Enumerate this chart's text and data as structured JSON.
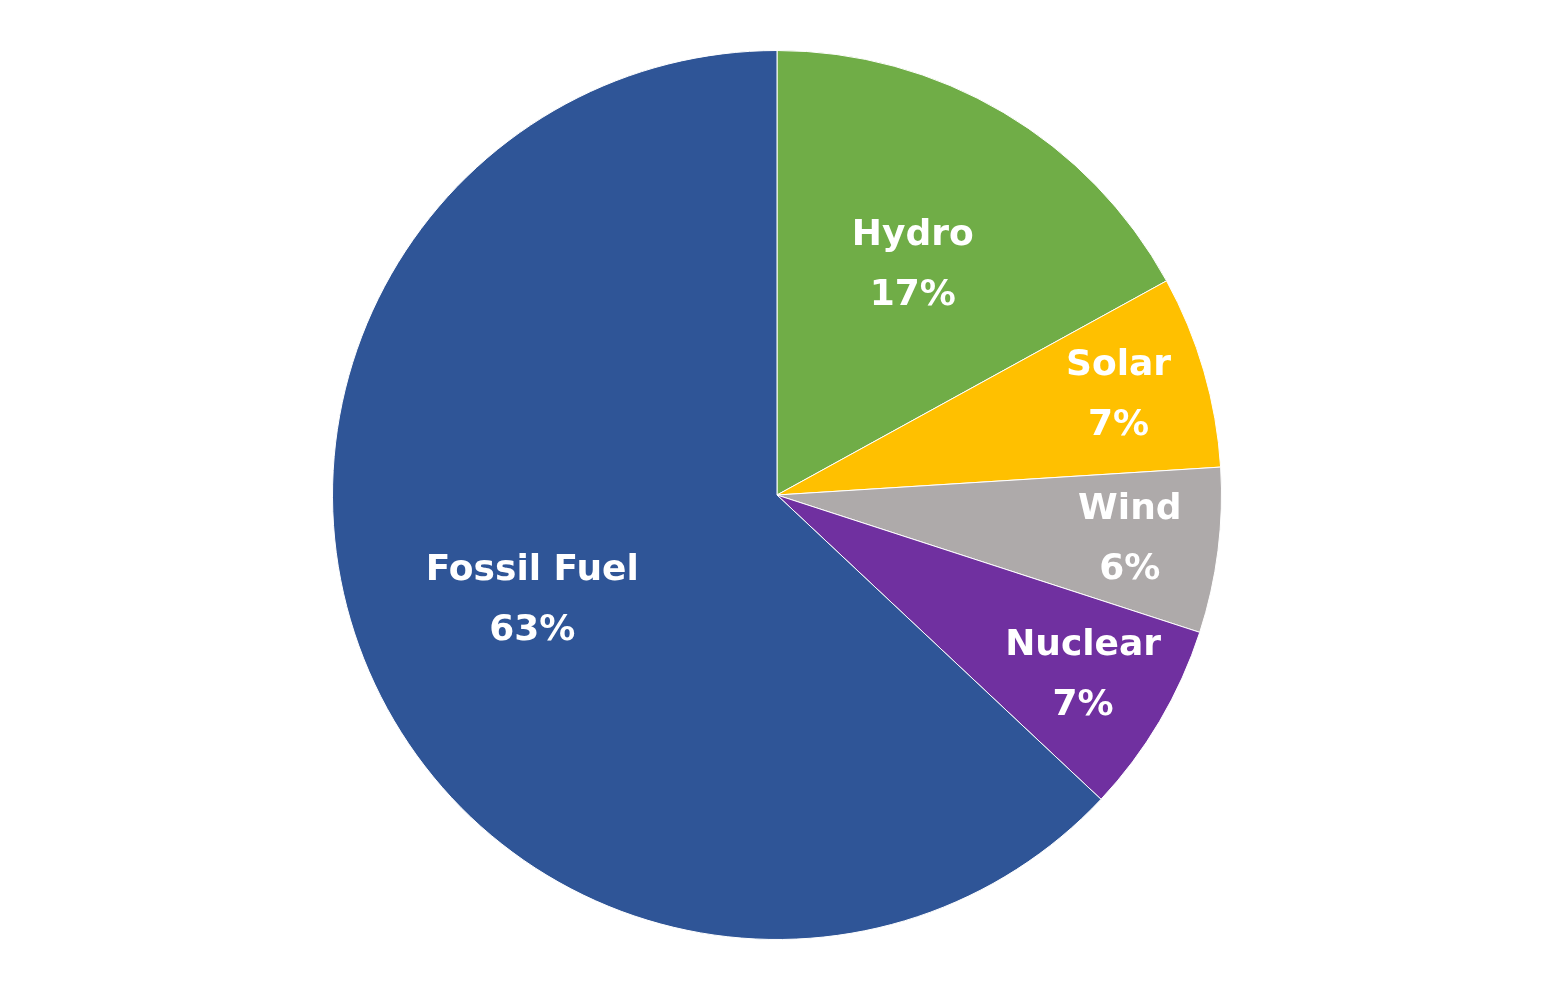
{
  "chart_data": {
    "type": "pie",
    "categories": [
      "Hydro",
      "Solar",
      "Wind",
      "Nuclear",
      "Fossil Fuel"
    ],
    "values": [
      17,
      7,
      6,
      7,
      63
    ],
    "colors": [
      "#70ad47",
      "#ffc000",
      "#aeaaaa",
      "#7030a0",
      "#2f5597"
    ],
    "value_labels": [
      "17%",
      "7%",
      "6%",
      "7%",
      "63%"
    ],
    "legend": false
  }
}
